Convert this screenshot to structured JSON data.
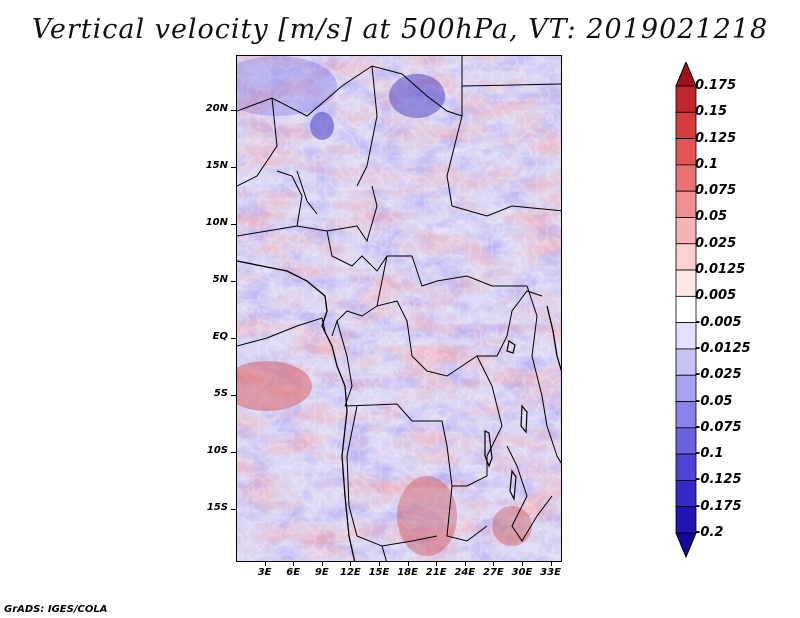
{
  "title": "Vertical velocity [m/s] at 500hPa, VT: 2019021218",
  "credit": "GrADS: IGES/COLA",
  "map": {
    "lat_labels": [
      "20N",
      "15N",
      "10N",
      "5N",
      "EQ",
      "5S",
      "10S",
      "15S"
    ],
    "lat_values": [
      20,
      15,
      10,
      5,
      0,
      -5,
      -10,
      -15
    ],
    "lon_labels": [
      "3E",
      "6E",
      "9E",
      "12E",
      "15E",
      "18E",
      "21E",
      "24E",
      "27E",
      "30E",
      "33E"
    ],
    "lon_values": [
      3,
      6,
      9,
      12,
      15,
      18,
      21,
      24,
      27,
      30,
      33
    ],
    "lat_range": [
      -19.6,
      24.8
    ],
    "lon_range": [
      0,
      34.2
    ]
  },
  "colorbar": {
    "labels": [
      "0.175",
      "0.15",
      "0.125",
      "0.1",
      "0.075",
      "0.05",
      "0.025",
      "0.0125",
      "0.005",
      "-0.005",
      "-0.0125",
      "-0.025",
      "-0.05",
      "-0.075",
      "-0.1",
      "-0.125",
      "-0.175",
      "-0.2"
    ],
    "colors": [
      "#a01018",
      "#c0262e",
      "#d83d3d",
      "#e35454",
      "#ea7272",
      "#f08f8f",
      "#f6b3b3",
      "#fad0d0",
      "#fde8e8",
      "#ffffff",
      "#e4e2fb",
      "#c7c3f5",
      "#a7a1ee",
      "#8a82e8",
      "#6c62e0",
      "#4f44d6",
      "#352ac8",
      "#2315b5",
      "#17089c"
    ],
    "units": "m/s"
  }
}
